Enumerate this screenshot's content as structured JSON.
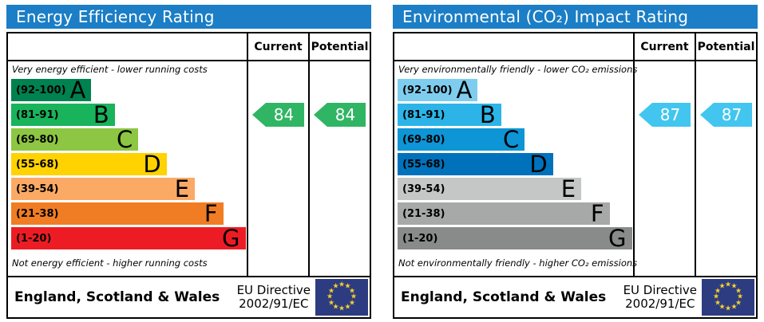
{
  "colors": {
    "header_bar": "#1b7ec6",
    "eu_flag_blue": "#2d3c80",
    "eu_star_gold": "#f8d12c"
  },
  "panels": [
    {
      "title": "Energy Efficiency Rating",
      "col_current": "Current",
      "col_potential": "Potential",
      "top_note": "Very energy efficient - lower running costs",
      "bottom_note": "Not energy efficient - higher running costs",
      "bands": [
        {
          "range": "(92-100)",
          "letter": "A",
          "color": "#008150",
          "width_pct": 34
        },
        {
          "range": "(81-91)",
          "letter": "B",
          "color": "#19b35c",
          "width_pct": 44
        },
        {
          "range": "(69-80)",
          "letter": "C",
          "color": "#8dc642",
          "width_pct": 54
        },
        {
          "range": "(55-68)",
          "letter": "D",
          "color": "#ffd200",
          "width_pct": 66
        },
        {
          "range": "(39-54)",
          "letter": "E",
          "color": "#fbaa65",
          "width_pct": 78
        },
        {
          "range": "(21-38)",
          "letter": "F",
          "color": "#f07d23",
          "width_pct": 90
        },
        {
          "range": "(1-20)",
          "letter": "G",
          "color": "#ed1c24",
          "width_pct": 99.5
        }
      ],
      "current": {
        "value": "84",
        "band": "B",
        "color": "#30b564"
      },
      "potential": {
        "value": "84",
        "band": "B",
        "color": "#30b564"
      },
      "footer_region": "England, Scotland & Wales",
      "footer_directive_l1": "EU Directive",
      "footer_directive_l2": "2002/91/EC"
    },
    {
      "title": "Environmental (CO₂) Impact Rating",
      "col_current": "Current",
      "col_potential": "Potential",
      "top_note": "Very environmentally friendly - lower CO₂ emissions",
      "bottom_note": "Not environmentally friendly - higher CO₂ emissions",
      "bands": [
        {
          "range": "(92-100)",
          "letter": "A",
          "color": "#7fcdee",
          "width_pct": 34
        },
        {
          "range": "(81-91)",
          "letter": "B",
          "color": "#2cb4e8",
          "width_pct": 44
        },
        {
          "range": "(69-80)",
          "letter": "C",
          "color": "#0d95d6",
          "width_pct": 54
        },
        {
          "range": "(55-68)",
          "letter": "D",
          "color": "#0072bc",
          "width_pct": 66
        },
        {
          "range": "(39-54)",
          "letter": "E",
          "color": "#c5c6c6",
          "width_pct": 78
        },
        {
          "range": "(21-38)",
          "letter": "F",
          "color": "#a7a8a8",
          "width_pct": 90
        },
        {
          "range": "(1-20)",
          "letter": "G",
          "color": "#898a8a",
          "width_pct": 99.5
        }
      ],
      "current": {
        "value": "87",
        "band": "B",
        "color": "#42c6f0"
      },
      "potential": {
        "value": "87",
        "band": "B",
        "color": "#42c6f0"
      },
      "footer_region": "England, Scotland & Wales",
      "footer_directive_l1": "EU Directive",
      "footer_directive_l2": "2002/91/EC"
    }
  ],
  "chart_data": [
    {
      "type": "bar",
      "title": "Energy Efficiency Rating",
      "categories": [
        "A (92-100)",
        "B (81-91)",
        "C (69-80)",
        "D (55-68)",
        "E (39-54)",
        "F (21-38)",
        "G (1-20)"
      ],
      "values": [
        34,
        44,
        54,
        66,
        78,
        90,
        99.5
      ],
      "values_note": "decorative stepped bar lengths (% of column width)",
      "bar_colors": [
        "#008150",
        "#19b35c",
        "#8dc642",
        "#ffd200",
        "#fbaa65",
        "#f07d23",
        "#ed1c24"
      ],
      "current_rating": 84,
      "current_band": "B",
      "potential_rating": 84,
      "potential_band": "B",
      "annotations": [
        "Very energy efficient - lower running costs",
        "Not energy efficient - higher running costs"
      ],
      "legend_position": "none",
      "grid": false
    },
    {
      "type": "bar",
      "title": "Environmental (CO₂) Impact Rating",
      "categories": [
        "A (92-100)",
        "B (81-91)",
        "C (69-80)",
        "D (55-68)",
        "E (39-54)",
        "F (21-38)",
        "G (1-20)"
      ],
      "values": [
        34,
        44,
        54,
        66,
        78,
        90,
        99.5
      ],
      "values_note": "decorative stepped bar lengths (% of column width)",
      "bar_colors": [
        "#7fcdee",
        "#2cb4e8",
        "#0d95d6",
        "#0072bc",
        "#c5c6c6",
        "#a7a8a8",
        "#898a8a"
      ],
      "current_rating": 87,
      "current_band": "B",
      "potential_rating": 87,
      "potential_band": "B",
      "annotations": [
        "Very environmentally friendly - lower CO₂ emissions",
        "Not environmentally friendly - higher CO₂ emissions"
      ],
      "legend_position": "none",
      "grid": false
    }
  ]
}
